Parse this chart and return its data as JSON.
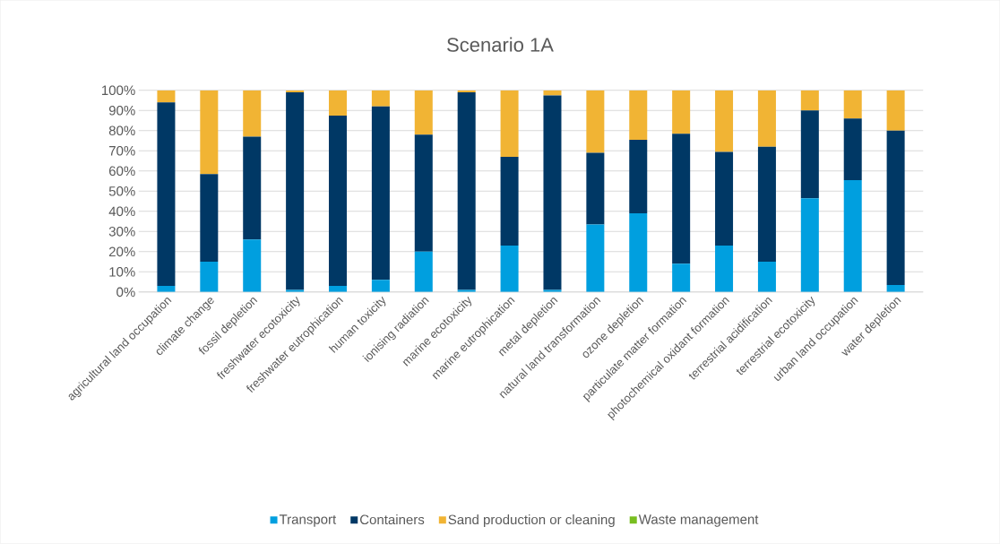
{
  "chart_data": {
    "type": "bar",
    "stacked": true,
    "title": "Scenario 1A",
    "categories": [
      "agricultural land occupation",
      "climate change",
      "fossil depletion",
      "freshwater ecotoxicity",
      "freshwater eutrophication",
      "human toxicity",
      "ionising radiation",
      "marine ecotoxicity",
      "marine eutrophication",
      "metal depletion",
      "natural land transformation",
      "ozone depletion",
      "particulate matter formation",
      "photochemical oxidant formation",
      "terrestrial acidification",
      "terrestrial ecotoxicity",
      "urban land occupation",
      "water depletion"
    ],
    "series": [
      {
        "name": "Transport",
        "color": "#009fdf",
        "values": [
          3,
          15,
          26,
          1,
          3,
          6,
          20,
          1,
          23,
          1,
          33.5,
          39,
          14,
          23,
          15,
          46.5,
          55.5,
          3.5
        ]
      },
      {
        "name": "Containers",
        "color": "#003865",
        "values": [
          91,
          43.5,
          51,
          98,
          84.5,
          86,
          58,
          98,
          44,
          96.5,
          35.5,
          36.5,
          64.5,
          46.5,
          57,
          43.5,
          30.5,
          76.5
        ]
      },
      {
        "name": "Sand production or cleaning",
        "color": "#f1b434",
        "values": [
          6,
          41.5,
          23,
          1,
          12.5,
          8,
          22,
          1,
          33,
          2.5,
          31,
          24.5,
          21.5,
          30.5,
          28,
          10,
          14,
          20
        ]
      },
      {
        "name": "Waste management",
        "color": "#78be20",
        "values": [
          0,
          0,
          0,
          0,
          0,
          0,
          0,
          0,
          0,
          0,
          0,
          0,
          0,
          0,
          0,
          0,
          0,
          0
        ]
      }
    ],
    "ylim": [
      0,
      100
    ],
    "yticks": [
      {
        "value": 0,
        "label": "0%"
      },
      {
        "value": 10,
        "label": "10%"
      },
      {
        "value": 20,
        "label": "20%"
      },
      {
        "value": 30,
        "label": "30%"
      },
      {
        "value": 40,
        "label": "40%"
      },
      {
        "value": 50,
        "label": "50%"
      },
      {
        "value": 60,
        "label": "60%"
      },
      {
        "value": 70,
        "label": "70%"
      },
      {
        "value": 80,
        "label": "80%"
      },
      {
        "value": 90,
        "label": "90%"
      },
      {
        "value": 100,
        "label": "100%"
      }
    ],
    "grid": "y",
    "legend": "bottom"
  }
}
